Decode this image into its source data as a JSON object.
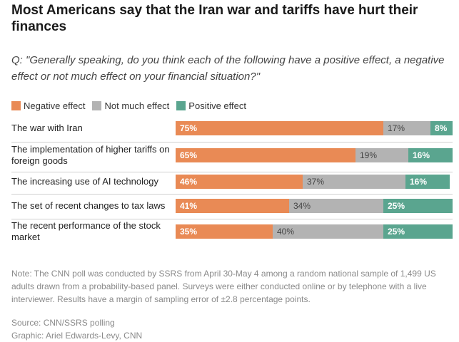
{
  "title": "Most Americans say that the Iran war and tariffs have hurt their finances",
  "question": "Q: \"Generally speaking, do you think each of the following have a positive effect, a negative effect or not much effect on your financial situation?\"",
  "colors": {
    "negative": "#e98a55",
    "not_much": "#b3b3b3",
    "positive": "#5aa58f"
  },
  "chart_data": {
    "type": "bar",
    "orientation": "horizontal",
    "stacked": true,
    "categories": [
      "The war with Iran",
      "The implementation of higher tariffs on foreign goods",
      "The increasing use of AI technology",
      "The set of recent changes to tax laws",
      "The recent performance of the stock market"
    ],
    "series": [
      {
        "name": "Negative effect",
        "values": [
          75,
          65,
          46,
          41,
          35
        ]
      },
      {
        "name": "Not much effect",
        "values": [
          17,
          19,
          37,
          34,
          40
        ]
      },
      {
        "name": "Positive effect",
        "values": [
          8,
          16,
          16,
          25,
          25
        ]
      }
    ],
    "value_suffix": "%",
    "xlim": [
      0,
      100
    ]
  },
  "note": "Note: The CNN poll was conducted by SSRS from April 30-May 4 among a random national sample of 1,499 US adults drawn from a probability-based panel. Surveys were either conducted online or by telephone with a live interviewer. Results have a margin of sampling error of ±2.8 percentage points.",
  "source": "Source: CNN/SSRS polling",
  "graphic_credit": "Graphic: Ariel Edwards-Levy, CNN"
}
